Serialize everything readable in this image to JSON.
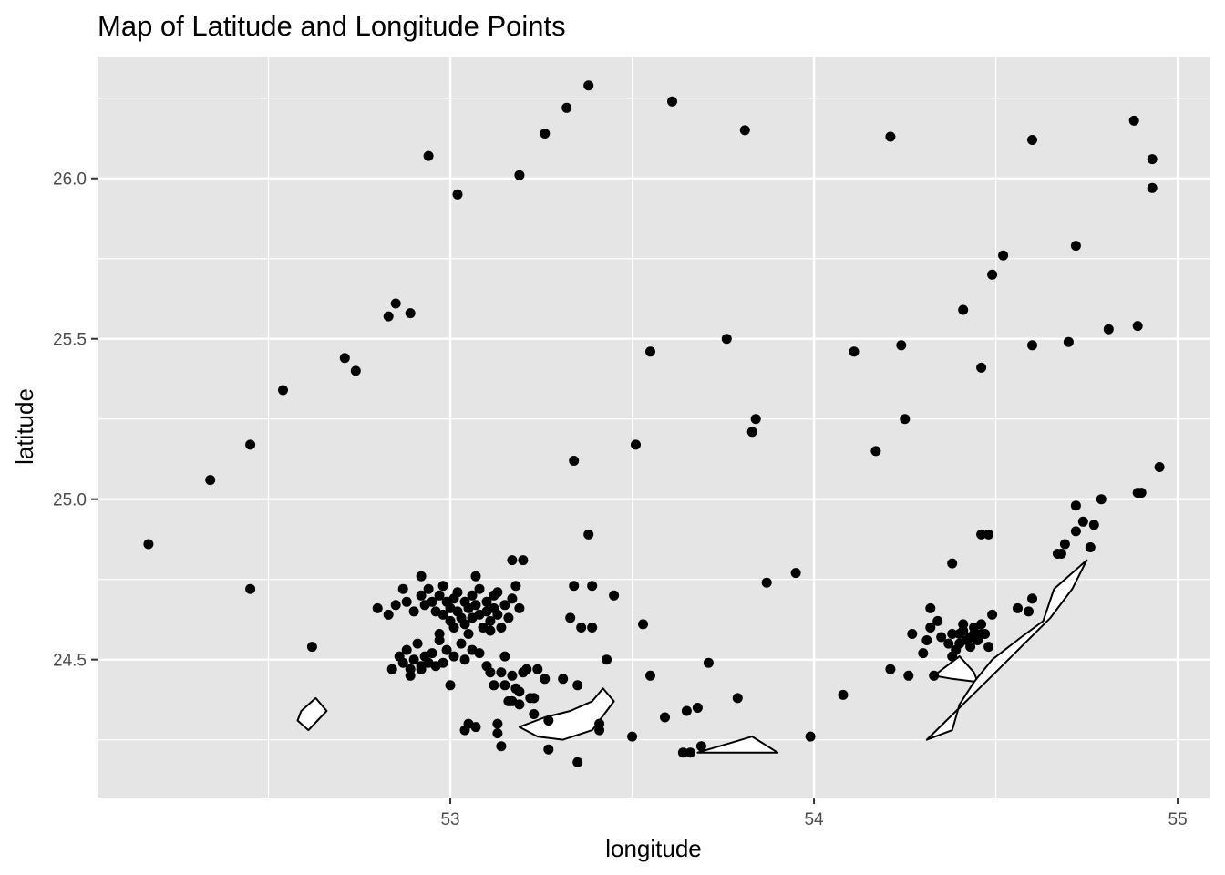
{
  "chart_data": {
    "type": "scatter",
    "title": "Map of Latitude and Longitude Points",
    "xlabel": "longitude",
    "ylabel": "latitude",
    "xlim": [
      52.03,
      55.09
    ],
    "ylim": [
      24.07,
      26.38
    ],
    "x_ticks": [
      53,
      54,
      55
    ],
    "x_tick_labels": [
      "53",
      "54",
      "55"
    ],
    "y_ticks": [
      24.5,
      25.0,
      25.5,
      26.0
    ],
    "y_tick_labels": [
      "24.5",
      "25.0",
      "25.5",
      "26.0"
    ],
    "grid": true,
    "panel_color": "#e5e5e5",
    "grid_color": "#ffffff",
    "point_color": "#000000",
    "points": [
      [
        52.17,
        24.86
      ],
      [
        52.34,
        25.06
      ],
      [
        52.45,
        25.17
      ],
      [
        52.45,
        24.72
      ],
      [
        52.54,
        25.34
      ],
      [
        52.62,
        24.54
      ],
      [
        52.71,
        25.44
      ],
      [
        52.74,
        25.4
      ],
      [
        52.83,
        25.57
      ],
      [
        52.85,
        25.61
      ],
      [
        52.89,
        25.58
      ],
      [
        52.94,
        26.07
      ],
      [
        53.02,
        25.95
      ],
      [
        53.19,
        26.01
      ],
      [
        53.26,
        26.14
      ],
      [
        53.32,
        26.22
      ],
      [
        53.38,
        26.29
      ],
      [
        53.61,
        26.24
      ],
      [
        53.81,
        26.15
      ],
      [
        53.55,
        25.46
      ],
      [
        53.76,
        25.5
      ],
      [
        53.34,
        25.12
      ],
      [
        53.51,
        25.17
      ],
      [
        53.83,
        25.21
      ],
      [
        53.84,
        25.25
      ],
      [
        54.11,
        25.46
      ],
      [
        54.21,
        26.13
      ],
      [
        54.24,
        25.48
      ],
      [
        54.25,
        25.25
      ],
      [
        54.17,
        25.15
      ],
      [
        54.41,
        25.59
      ],
      [
        54.46,
        25.41
      ],
      [
        54.49,
        25.7
      ],
      [
        54.52,
        25.76
      ],
      [
        54.6,
        26.12
      ],
      [
        54.6,
        25.48
      ],
      [
        54.7,
        25.49
      ],
      [
        54.72,
        25.79
      ],
      [
        54.81,
        25.53
      ],
      [
        54.88,
        26.18
      ],
      [
        54.89,
        25.54
      ],
      [
        54.93,
        26.06
      ],
      [
        54.93,
        25.97
      ],
      [
        54.95,
        25.1
      ],
      [
        54.89,
        25.02
      ],
      [
        54.9,
        25.02
      ],
      [
        54.79,
        25.0
      ],
      [
        54.72,
        24.98
      ],
      [
        54.74,
        24.93
      ],
      [
        54.77,
        24.92
      ],
      [
        54.72,
        24.9
      ],
      [
        54.69,
        24.86
      ],
      [
        54.68,
        24.83
      ],
      [
        54.67,
        24.83
      ],
      [
        54.76,
        24.85
      ],
      [
        54.46,
        24.89
      ],
      [
        54.48,
        24.89
      ],
      [
        54.38,
        24.8
      ],
      [
        53.38,
        24.89
      ],
      [
        53.17,
        24.81
      ],
      [
        53.2,
        24.81
      ],
      [
        53.95,
        24.77
      ],
      [
        53.87,
        24.74
      ],
      [
        53.45,
        24.7
      ],
      [
        53.53,
        24.61
      ],
      [
        53.34,
        24.73
      ],
      [
        53.39,
        24.73
      ],
      [
        53.33,
        24.63
      ],
      [
        53.36,
        24.6
      ],
      [
        53.39,
        24.6
      ],
      [
        53.43,
        24.5
      ],
      [
        53.55,
        24.45
      ],
      [
        53.35,
        24.42
      ],
      [
        53.31,
        24.44
      ],
      [
        53.71,
        24.49
      ],
      [
        53.59,
        24.32
      ],
      [
        53.65,
        24.34
      ],
      [
        53.68,
        24.35
      ],
      [
        53.79,
        24.38
      ],
      [
        53.64,
        24.21
      ],
      [
        53.66,
        24.21
      ],
      [
        53.69,
        24.23
      ],
      [
        53.5,
        24.26
      ],
      [
        53.27,
        24.31
      ],
      [
        53.27,
        24.22
      ],
      [
        53.35,
        24.18
      ],
      [
        53.41,
        24.28
      ],
      [
        53.41,
        24.3
      ],
      [
        53.13,
        24.3
      ],
      [
        53.13,
        24.27
      ],
      [
        53.14,
        24.23
      ],
      [
        53.05,
        24.3
      ],
      [
        53.04,
        24.28
      ],
      [
        53.07,
        24.29
      ],
      [
        53.23,
        24.38
      ],
      [
        53.23,
        24.33
      ],
      [
        53.22,
        24.38
      ],
      [
        53.19,
        24.4
      ],
      [
        53.17,
        24.37
      ],
      [
        53.19,
        24.36
      ],
      [
        53.16,
        24.37
      ],
      [
        54.08,
        24.39
      ],
      [
        53.99,
        24.26
      ],
      [
        54.21,
        24.47
      ],
      [
        54.26,
        24.45
      ],
      [
        54.33,
        24.45
      ],
      [
        54.27,
        24.58
      ],
      [
        54.3,
        24.52
      ],
      [
        54.31,
        24.56
      ],
      [
        54.32,
        24.6
      ],
      [
        54.34,
        24.62
      ],
      [
        54.32,
        24.66
      ],
      [
        54.35,
        24.57
      ],
      [
        54.37,
        24.55
      ],
      [
        54.38,
        24.51
      ],
      [
        54.39,
        24.53
      ],
      [
        54.4,
        24.55
      ],
      [
        54.4,
        24.58
      ],
      [
        54.41,
        24.59
      ],
      [
        54.42,
        24.56
      ],
      [
        54.43,
        24.54
      ],
      [
        54.43,
        24.57
      ],
      [
        54.44,
        24.6
      ],
      [
        54.45,
        24.56
      ],
      [
        54.46,
        24.58
      ],
      [
        54.46,
        24.61
      ],
      [
        54.47,
        24.58
      ],
      [
        54.48,
        24.54
      ],
      [
        54.49,
        24.64
      ],
      [
        54.56,
        24.66
      ],
      [
        54.59,
        24.65
      ],
      [
        54.6,
        24.69
      ],
      [
        54.38,
        24.58
      ],
      [
        54.41,
        24.61
      ],
      [
        54.44,
        24.58
      ],
      [
        52.8,
        24.66
      ],
      [
        52.83,
        24.64
      ],
      [
        52.85,
        24.67
      ],
      [
        52.87,
        24.72
      ],
      [
        52.88,
        24.68
      ],
      [
        52.9,
        24.65
      ],
      [
        52.92,
        24.7
      ],
      [
        52.92,
        24.76
      ],
      [
        52.93,
        24.67
      ],
      [
        52.94,
        24.72
      ],
      [
        52.95,
        24.68
      ],
      [
        52.96,
        24.65
      ],
      [
        52.97,
        24.7
      ],
      [
        52.98,
        24.64
      ],
      [
        52.98,
        24.73
      ],
      [
        52.99,
        24.68
      ],
      [
        53.0,
        24.66
      ],
      [
        53.0,
        24.62
      ],
      [
        53.01,
        24.69
      ],
      [
        53.02,
        24.65
      ],
      [
        53.02,
        24.71
      ],
      [
        53.03,
        24.63
      ],
      [
        53.04,
        24.68
      ],
      [
        53.04,
        24.61
      ],
      [
        53.05,
        24.66
      ],
      [
        53.06,
        24.7
      ],
      [
        53.06,
        24.63
      ],
      [
        53.07,
        24.67
      ],
      [
        53.08,
        24.64
      ],
      [
        53.08,
        24.72
      ],
      [
        53.09,
        24.6
      ],
      [
        53.1,
        24.68
      ],
      [
        53.1,
        24.65
      ],
      [
        53.11,
        24.62
      ],
      [
        53.12,
        24.7
      ],
      [
        53.12,
        24.66
      ],
      [
        53.13,
        24.64
      ],
      [
        53.14,
        24.6
      ],
      [
        53.15,
        24.67
      ],
      [
        53.16,
        24.63
      ],
      [
        53.17,
        24.69
      ],
      [
        53.18,
        24.73
      ],
      [
        53.19,
        24.66
      ],
      [
        53.13,
        24.71
      ],
      [
        53.07,
        24.76
      ],
      [
        53.05,
        24.58
      ],
      [
        53.01,
        24.6
      ],
      [
        52.97,
        24.58
      ],
      [
        53.11,
        24.59
      ],
      [
        52.84,
        24.47
      ],
      [
        52.86,
        24.51
      ],
      [
        52.87,
        24.49
      ],
      [
        52.88,
        24.53
      ],
      [
        52.89,
        24.47
      ],
      [
        52.9,
        24.5
      ],
      [
        52.91,
        24.55
      ],
      [
        52.92,
        24.48
      ],
      [
        52.93,
        24.51
      ],
      [
        52.94,
        24.49
      ],
      [
        52.95,
        24.52
      ],
      [
        52.96,
        24.48
      ],
      [
        52.97,
        24.56
      ],
      [
        52.98,
        24.49
      ],
      [
        52.99,
        24.53
      ],
      [
        53.0,
        24.42
      ],
      [
        53.01,
        24.51
      ],
      [
        53.03,
        24.55
      ],
      [
        53.04,
        24.5
      ],
      [
        53.06,
        24.53
      ],
      [
        53.08,
        24.52
      ],
      [
        53.1,
        24.48
      ],
      [
        53.11,
        24.46
      ],
      [
        53.14,
        24.46
      ],
      [
        53.15,
        24.51
      ],
      [
        53.12,
        24.42
      ],
      [
        53.15,
        24.42
      ],
      [
        53.17,
        24.45
      ],
      [
        53.18,
        24.41
      ],
      [
        53.2,
        24.46
      ],
      [
        53.21,
        24.47
      ],
      [
        53.24,
        24.47
      ],
      [
        53.26,
        24.44
      ],
      [
        52.92,
        24.47
      ],
      [
        52.89,
        24.45
      ]
    ],
    "shapes": [
      [
        [
          52.59,
          24.34
        ],
        [
          52.63,
          24.38
        ],
        [
          52.66,
          24.34
        ],
        [
          52.61,
          24.28
        ],
        [
          52.58,
          24.31
        ]
      ],
      [
        [
          53.19,
          24.29
        ],
        [
          53.26,
          24.32
        ],
        [
          53.33,
          24.34
        ],
        [
          53.39,
          24.37
        ],
        [
          53.42,
          24.41
        ],
        [
          53.45,
          24.37
        ],
        [
          53.39,
          24.28
        ],
        [
          53.31,
          24.25
        ],
        [
          53.24,
          24.26
        ]
      ],
      [
        [
          53.68,
          24.21
        ],
        [
          53.77,
          24.24
        ],
        [
          53.83,
          24.26
        ],
        [
          53.9,
          24.21
        ]
      ],
      [
        [
          54.33,
          24.45
        ],
        [
          54.4,
          24.51
        ],
        [
          54.44,
          24.46
        ],
        [
          54.45,
          24.43
        ],
        [
          54.38,
          24.44
        ]
      ],
      [
        [
          54.31,
          24.25
        ],
        [
          54.4,
          24.35
        ],
        [
          54.49,
          24.45
        ],
        [
          54.57,
          24.54
        ],
        [
          54.65,
          24.63
        ],
        [
          54.71,
          24.72
        ],
        [
          54.75,
          24.81
        ],
        [
          54.66,
          24.72
        ],
        [
          54.63,
          24.62
        ],
        [
          54.57,
          24.57
        ],
        [
          54.49,
          24.5
        ],
        [
          54.44,
          24.43
        ],
        [
          54.4,
          24.36
        ],
        [
          54.38,
          24.28
        ]
      ]
    ]
  }
}
